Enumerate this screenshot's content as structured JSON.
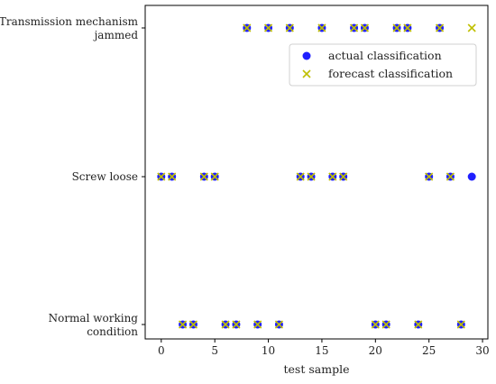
{
  "chart_data": {
    "type": "scatter",
    "xlabel": "test sample",
    "ylabel": "",
    "xlim": [
      -1.5,
      30.5
    ],
    "xticks": [
      0,
      5,
      10,
      15,
      20,
      25,
      30
    ],
    "categories": [
      {
        "lines": [
          "Normal working",
          "condition"
        ],
        "value": 0
      },
      {
        "lines": [
          "Screw loose"
        ],
        "value": 1
      },
      {
        "lines": [
          "Transmission mechanism",
          "jammed"
        ],
        "value": 2
      }
    ],
    "grid": false,
    "legend_position": "top-right",
    "series": [
      {
        "name": "actual classification",
        "marker": "circle",
        "color": "#1f1fff",
        "x": [
          0,
          1,
          2,
          3,
          4,
          5,
          6,
          7,
          8,
          9,
          10,
          11,
          12,
          13,
          14,
          15,
          16,
          17,
          18,
          19,
          20,
          21,
          22,
          23,
          24,
          25,
          26,
          27,
          28,
          29
        ],
        "y": [
          1,
          1,
          0,
          0,
          1,
          1,
          0,
          0,
          2,
          0,
          2,
          0,
          2,
          1,
          1,
          2,
          1,
          1,
          2,
          2,
          0,
          0,
          2,
          2,
          0,
          1,
          2,
          1,
          0,
          1
        ]
      },
      {
        "name": "forecast classification",
        "marker": "x",
        "color": "#bfbf00",
        "x": [
          0,
          1,
          2,
          3,
          4,
          5,
          6,
          7,
          8,
          9,
          10,
          11,
          12,
          13,
          14,
          15,
          16,
          17,
          18,
          19,
          20,
          21,
          22,
          23,
          24,
          25,
          26,
          27,
          28,
          29
        ],
        "y": [
          1,
          1,
          0,
          0,
          1,
          1,
          0,
          0,
          2,
          0,
          2,
          0,
          2,
          1,
          1,
          2,
          1,
          1,
          2,
          2,
          0,
          0,
          2,
          2,
          0,
          1,
          2,
          1,
          0,
          2
        ]
      }
    ]
  }
}
